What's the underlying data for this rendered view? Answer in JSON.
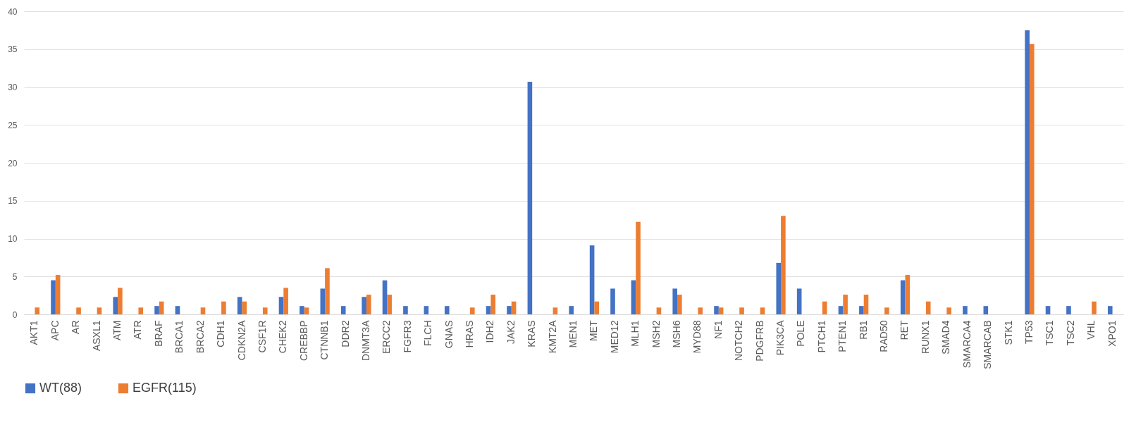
{
  "chart_data": {
    "type": "bar",
    "categories": [
      "AKT1",
      "APC",
      "AR",
      "ASXL1",
      "ATM",
      "ATR",
      "BRAF",
      "BRCA1",
      "BRCA2",
      "CDH1",
      "CDKN2A",
      "CSF1R",
      "CHEK2",
      "CREBBP",
      "CTNNB1",
      "DDR2",
      "DNMT3A",
      "ERCC2",
      "FGFR3",
      "FLCH",
      "GNAS",
      "HRAS",
      "IDH2",
      "JAK2",
      "KRAS",
      "KMT2A",
      "MEN1",
      "MET",
      "MED12",
      "MLH1",
      "MSH2",
      "MSH6",
      "MYD88",
      "NF1",
      "NOTCH2",
      "PDGFRB",
      "PIK3CA",
      "POLE",
      "PTCH1",
      "PTEN1",
      "RB1",
      "RAD50",
      "RET",
      "RUNX1",
      "SMAD4",
      "SMARCA4",
      "SMARCAB",
      "STK1",
      "TP53",
      "TSC1",
      "TSC2",
      "VHL",
      "XPO1"
    ],
    "series": [
      {
        "name": "WT(88)",
        "color": "#4472c4",
        "values": [
          0,
          4.5,
          0,
          0,
          2.3,
          0,
          1.1,
          1.1,
          0,
          0,
          2.3,
          0,
          2.3,
          1.1,
          3.4,
          1.1,
          2.3,
          4.5,
          1.1,
          1.1,
          1.1,
          0,
          1.1,
          1.1,
          30.7,
          0,
          1.1,
          9.1,
          3.4,
          4.5,
          0,
          3.4,
          0,
          1.1,
          0,
          0,
          6.8,
          3.4,
          0,
          1.1,
          1.1,
          0,
          4.5,
          0,
          0,
          1.1,
          1.1,
          0,
          37.5,
          1.1,
          1.1,
          0,
          1.1
        ]
      },
      {
        "name": "EGFR(115)",
        "color": "#ed7d31",
        "values": [
          0.9,
          5.2,
          0.9,
          0.9,
          3.5,
          0.9,
          1.7,
          0,
          0.9,
          1.7,
          1.7,
          0.9,
          3.5,
          0.9,
          6.1,
          0,
          2.6,
          2.6,
          0,
          0,
          0,
          0.9,
          2.6,
          1.7,
          0,
          0.9,
          0,
          1.7,
          0,
          12.2,
          0.9,
          2.6,
          0.9,
          0.9,
          0.9,
          0.9,
          13.0,
          0,
          1.7,
          2.6,
          2.6,
          0.9,
          5.2,
          1.7,
          0.9,
          0,
          0,
          0,
          35.7,
          0,
          0,
          1.7,
          0
        ]
      }
    ],
    "ylim": [
      0,
      40
    ],
    "yticks": [
      0,
      5,
      10,
      15,
      20,
      25,
      30,
      35,
      40
    ],
    "grid": "y",
    "legend": "bottom"
  }
}
